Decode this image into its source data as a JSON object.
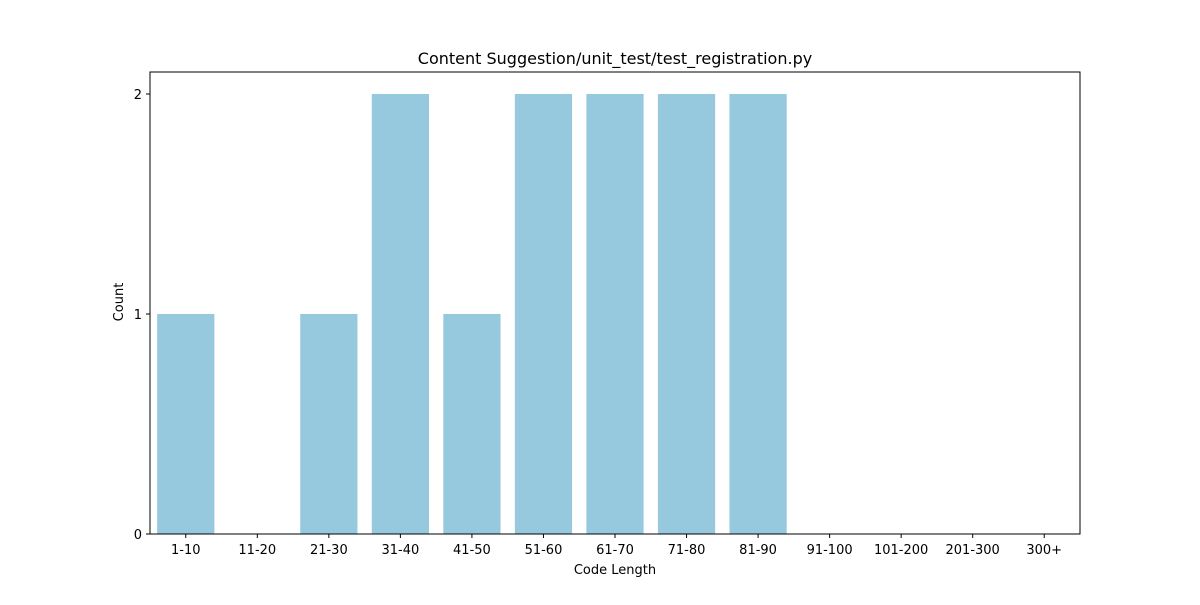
{
  "chart_data": {
    "type": "bar",
    "title": "Content Suggestion/unit_test/test_registration.py",
    "xlabel": "Code Length",
    "ylabel": "Count",
    "categories": [
      "1-10",
      "11-20",
      "21-30",
      "31-40",
      "41-50",
      "51-60",
      "61-70",
      "71-80",
      "81-90",
      "91-100",
      "101-200",
      "201-300",
      "300+"
    ],
    "values": [
      1,
      0,
      1,
      2,
      1,
      2,
      2,
      2,
      2,
      0,
      0,
      0,
      0
    ],
    "yticks": [
      "0",
      "1",
      "2"
    ],
    "ylim": [
      0,
      2.1
    ],
    "grid": false,
    "legend": "none",
    "bar_color": "#96c9de"
  }
}
